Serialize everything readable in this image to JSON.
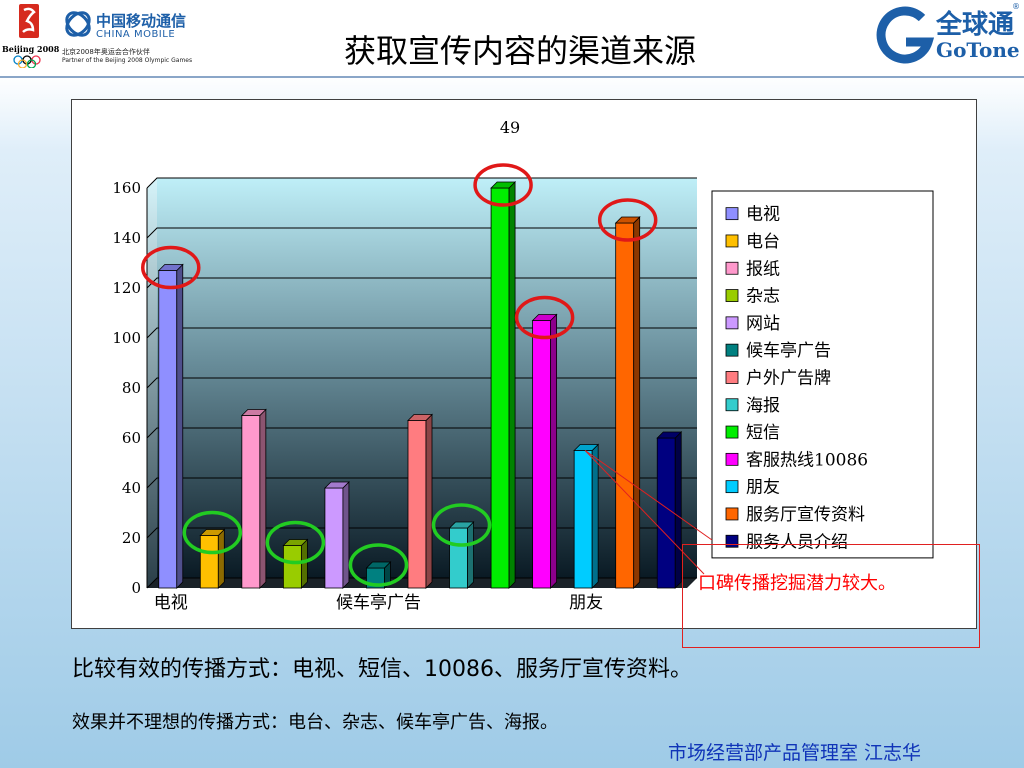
{
  "slide": {
    "title": "获取宣传内容的渠道来源",
    "bullet1": "比较有效的传播方式：电视、短信、10086、服务厅宣传资料。",
    "bullet2": "效果并不理想的传播方式：电台、杂志、候车亭广告、海报。",
    "callout": "口碑传播挖掘潜力较大。",
    "footer": "市场经营部产品管理室  江志华"
  },
  "logos": {
    "china_mobile_cn": "中国移动通信",
    "china_mobile_en": "CHINA MOBILE",
    "partner_cn": "北京2008年奥运会合作伙伴",
    "partner_en": "Partner of the Beijing 2008 Olympic Games",
    "beijing_text": "Beijing 2008",
    "gotone_cn": "全球通",
    "gotone_en": "GoTone",
    "gotone_reg": "®",
    "brand_color": "#1d5fa8"
  },
  "chart_data": {
    "type": "bar",
    "title": "49",
    "categories": [
      "电视",
      "电台",
      "报纸",
      "杂志",
      "网站",
      "候车亭广告",
      "户外广告牌",
      "海报",
      "短信",
      "客服热线10086",
      "朋友",
      "服务厅宣传资料",
      "服务人员介绍"
    ],
    "x_tick_labels": [
      "电视",
      "候车亭广告",
      "朋友"
    ],
    "values": [
      127,
      21,
      69,
      17,
      40,
      8,
      67,
      24,
      160,
      107,
      55,
      146,
      60
    ],
    "colors": [
      "#8f8fff",
      "#ffc000",
      "#ff99cc",
      "#99cc00",
      "#cc99ff",
      "#008080",
      "#ff7c80",
      "#33cccc",
      "#00ee00",
      "#ff00ff",
      "#00ccff",
      "#ff6600",
      "#000080"
    ],
    "ylim": [
      0,
      160
    ],
    "yticks": [
      0,
      20,
      40,
      60,
      80,
      100,
      120,
      140,
      160
    ],
    "grid": true,
    "legend_position": "right",
    "highlight_red": [
      "电视",
      "短信",
      "客服热线10086",
      "服务厅宣传资料"
    ],
    "highlight_green": [
      "电台",
      "杂志",
      "候车亭广告",
      "海报"
    ]
  }
}
